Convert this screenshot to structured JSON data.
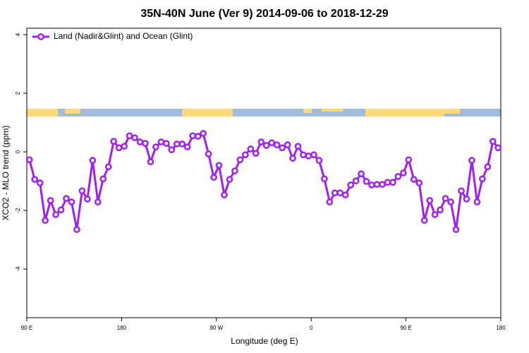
{
  "chart_data": {
    "type": "line",
    "title": "35N-40N June (Ver 9)   2014-09-06 to 2018-12-29",
    "x_label": "Longitude (deg E)",
    "y_label": "XCO2 - MLO trend (ppm)",
    "xlim": [
      90,
      540
    ],
    "ylim": [
      -5.66,
      4.22
    ],
    "xticks": [
      {
        "value": 90,
        "label": "90 E"
      },
      180,
      {
        "value": 270,
        "label": "90 W"
      },
      {
        "value": 360,
        "label": "0"
      },
      {
        "value": 450,
        "label": "90 E"
      },
      {
        "value": 540,
        "label": "180"
      }
    ],
    "yticks": [
      -4,
      -2,
      0,
      2,
      4
    ],
    "legend": "top-left",
    "x": [
      92.5,
      97.5,
      102.5,
      107.5,
      112.5,
      117.5,
      122.5,
      127.5,
      132.5,
      137.5,
      142.5,
      147.5,
      152.5,
      157.5,
      162.5,
      167.5,
      172.5,
      177.5,
      182.5,
      187.5,
      192.5,
      197.5,
      202.5,
      207.5,
      212.5,
      217.5,
      222.5,
      227.5,
      232.5,
      237.5,
      242.5,
      247.5,
      252.5,
      257.5,
      262.5,
      267.5,
      272.5,
      277.5,
      282.5,
      287.5,
      292.5,
      297.5,
      302.5,
      307.5,
      312.5,
      317.5,
      322.5,
      327.5,
      332.5,
      337.5,
      342.5,
      347.5,
      352.5,
      357.5,
      362.5,
      367.5,
      372.5,
      377.5,
      382.5,
      387.5,
      392.5,
      397.5,
      402.5,
      407.5,
      412.5,
      417.5,
      422.5,
      427.5,
      432.5,
      437.5,
      442.5,
      447.5,
      452.5,
      457.5,
      462.5,
      467.5,
      472.5,
      477.5,
      482.5,
      487.5,
      492.5,
      497.5,
      502.5,
      507.5,
      512.5,
      517.5,
      522.5,
      527.5,
      532.5,
      537.5
    ],
    "series": [
      {
        "name": "Land (Nadir&Glint) and Ocean (Glint)",
        "color": "#a020f0",
        "values": [
          -0.27,
          -0.94,
          -1.06,
          -2.34,
          -1.66,
          -2.14,
          -1.98,
          -1.59,
          -1.71,
          -2.65,
          -1.33,
          -1.61,
          -0.29,
          -1.71,
          -0.92,
          -0.51,
          0.36,
          0.14,
          0.19,
          0.55,
          0.48,
          0.34,
          0.29,
          -0.34,
          0.17,
          0.34,
          0.29,
          0.07,
          0.27,
          0.27,
          0.17,
          0.55,
          0.53,
          0.63,
          -0.07,
          -0.87,
          -0.46,
          -1.47,
          -0.94,
          -0.65,
          -0.27,
          -0.1,
          0.1,
          -0.05,
          0.34,
          0.22,
          0.31,
          0.24,
          0.14,
          0.24,
          -0.22,
          0.19,
          -0.1,
          -0.14,
          -0.1,
          -0.29,
          -0.92,
          -1.71,
          -1.4,
          -1.4,
          -1.47,
          -1.13,
          -0.99,
          -0.75,
          -1.01,
          -1.13,
          -1.11,
          -1.11,
          -1.04,
          -1.04,
          -0.84,
          -0.72,
          -0.27,
          -0.94,
          -1.06,
          -2.34,
          -1.66,
          -2.14,
          -1.98,
          -1.59,
          -1.71,
          -2.65,
          -1.33,
          -1.61,
          -0.29,
          -1.71,
          -0.92,
          -0.51,
          0.36,
          0.14
        ]
      }
    ]
  }
}
